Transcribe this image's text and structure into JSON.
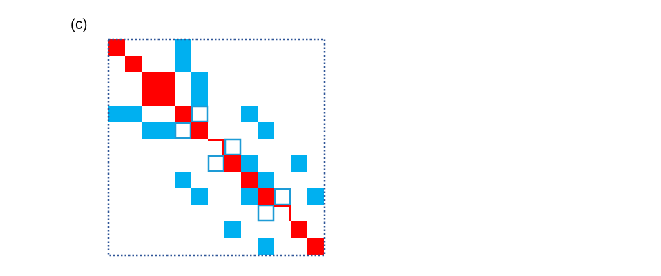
{
  "figure": {
    "panel_label": "(c)"
  },
  "matrix": {
    "grid_size": 13,
    "colors": {
      "diagonal_block": "#ff0000",
      "off_diagonal": "#00b0f0",
      "border": "#2f5597",
      "outline": "#1e9bd6"
    },
    "diagonal_blocks": [
      {
        "row": 0,
        "col": 0,
        "size": 1
      },
      {
        "row": 1,
        "col": 1,
        "size": 1
      },
      {
        "row": 2,
        "col": 2,
        "size": 2
      },
      {
        "row": 4,
        "col": 4,
        "size": 1
      },
      {
        "row": 5,
        "col": 5,
        "size": 1
      },
      {
        "row": 7,
        "col": 7,
        "size": 1
      },
      {
        "row": 8,
        "col": 8,
        "size": 1
      },
      {
        "row": 9,
        "col": 9,
        "size": 1
      },
      {
        "row": 11,
        "col": 11,
        "size": 1
      },
      {
        "row": 12,
        "col": 12,
        "size": 1
      }
    ],
    "diagonal_lines": [
      {
        "row": 6,
        "col": 6
      },
      {
        "row": 10,
        "col": 10
      }
    ],
    "filled_cells": [
      [
        0,
        4
      ],
      [
        1,
        4
      ],
      [
        2,
        5
      ],
      [
        3,
        5
      ],
      [
        4,
        0
      ],
      [
        4,
        1
      ],
      [
        4,
        8
      ],
      [
        5,
        2
      ],
      [
        5,
        3
      ],
      [
        5,
        9
      ],
      [
        7,
        8
      ],
      [
        7,
        11
      ],
      [
        8,
        4
      ],
      [
        8,
        8
      ],
      [
        8,
        9
      ],
      [
        9,
        5
      ],
      [
        9,
        8
      ],
      [
        9,
        12
      ],
      [
        11,
        7
      ],
      [
        12,
        9
      ]
    ],
    "outlined_cells": [
      [
        4,
        5
      ],
      [
        5,
        4
      ],
      [
        6,
        7
      ],
      [
        7,
        6
      ],
      [
        9,
        10
      ],
      [
        10,
        9
      ]
    ]
  }
}
